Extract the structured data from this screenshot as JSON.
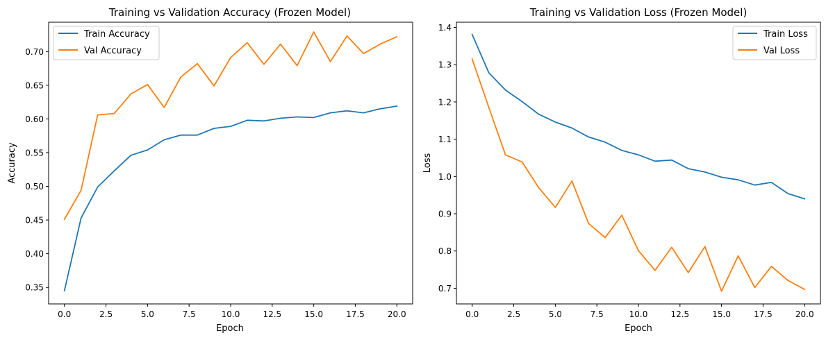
{
  "chart_data": [
    {
      "type": "line",
      "title": "Training vs Validation Accuracy (Frozen Model)",
      "xlabel": "Epoch",
      "ylabel": "Accuracy",
      "xlim": [
        -0.95,
        20.95
      ],
      "ylim": [
        0.3255,
        0.7435
      ],
      "xticks": [
        "0.0",
        "2.5",
        "5.0",
        "7.5",
        "10.0",
        "12.5",
        "15.0",
        "17.5",
        "20.0"
      ],
      "yticks": [
        "0.35",
        "0.40",
        "0.45",
        "0.50",
        "0.55",
        "0.60",
        "0.65",
        "0.70"
      ],
      "grid": false,
      "legend": "top-left",
      "x": [
        0,
        1,
        2,
        3,
        4,
        5,
        6,
        7,
        8,
        9,
        10,
        11,
        12,
        13,
        14,
        15,
        16,
        17,
        18,
        19,
        20
      ],
      "series": [
        {
          "name": "Train Accuracy",
          "color": "#1f77b4",
          "values": [
            0.345,
            0.453,
            0.499,
            0.523,
            0.546,
            0.554,
            0.569,
            0.576,
            0.576,
            0.586,
            0.589,
            0.598,
            0.597,
            0.601,
            0.603,
            0.602,
            0.609,
            0.612,
            0.609,
            0.615,
            0.619
          ]
        },
        {
          "name": "Val Accuracy",
          "color": "#ff7f0e",
          "values": [
            0.451,
            0.494,
            0.606,
            0.608,
            0.637,
            0.651,
            0.617,
            0.662,
            0.682,
            0.649,
            0.691,
            0.713,
            0.681,
            0.711,
            0.679,
            0.729,
            0.685,
            0.723,
            0.697,
            0.711,
            0.722
          ]
        }
      ]
    },
    {
      "type": "line",
      "title": "Training vs Validation Loss (Frozen Model)",
      "xlabel": "Epoch",
      "ylabel": "Loss",
      "xlim": [
        -0.95,
        20.95
      ],
      "ylim": [
        0.658,
        1.414
      ],
      "xticks": [
        "0.0",
        "2.5",
        "5.0",
        "7.5",
        "10.0",
        "12.5",
        "15.0",
        "17.5",
        "20.0"
      ],
      "yticks": [
        "0.7",
        "0.8",
        "0.9",
        "1.0",
        "1.1",
        "1.2",
        "1.3",
        "1.4"
      ],
      "grid": false,
      "legend": "top-right",
      "x": [
        0,
        1,
        2,
        3,
        4,
        5,
        6,
        7,
        8,
        9,
        10,
        11,
        12,
        13,
        14,
        15,
        16,
        17,
        18,
        19,
        20
      ],
      "series": [
        {
          "name": "Train Loss",
          "color": "#1f77b4",
          "values": [
            1.381,
            1.278,
            1.232,
            1.201,
            1.167,
            1.146,
            1.13,
            1.106,
            1.092,
            1.07,
            1.058,
            1.041,
            1.044,
            1.021,
            1.012,
            0.998,
            0.991,
            0.977,
            0.984,
            0.954,
            0.94
          ]
        },
        {
          "name": "Val Loss",
          "color": "#ff7f0e",
          "values": [
            1.315,
            1.185,
            1.058,
            1.039,
            0.97,
            0.917,
            0.988,
            0.874,
            0.836,
            0.896,
            0.801,
            0.748,
            0.81,
            0.742,
            0.812,
            0.692,
            0.787,
            0.702,
            0.759,
            0.721,
            0.697
          ]
        }
      ]
    }
  ]
}
